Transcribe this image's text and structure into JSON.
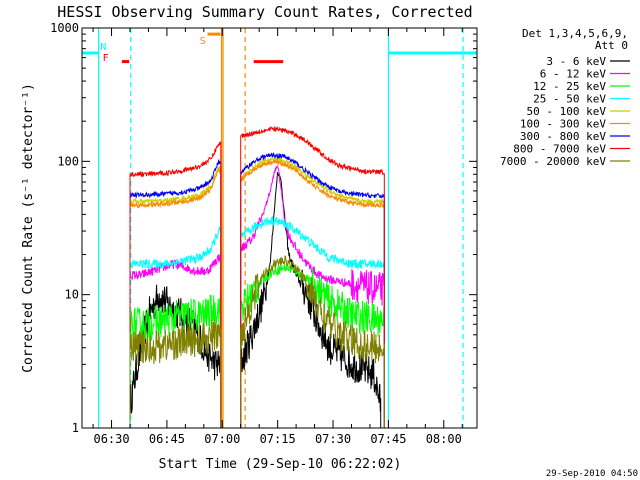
{
  "chart_data": {
    "type": "line",
    "title": "HESSI Observing Summary Count Rates, Corrected",
    "xlabel": "Start Time (29-Sep-10 06:22:02)",
    "ylabel": "Corrected Count Rate (s⁻¹ detector⁻¹)",
    "y_scale": "log",
    "ylim": [
      1,
      1000
    ],
    "xlim_minutes": [
      382,
      489
    ],
    "x_ticks": [
      {
        "label": "06:30",
        "minute": 390
      },
      {
        "label": "06:45",
        "minute": 405
      },
      {
        "label": "07:00",
        "minute": 420
      },
      {
        "label": "07:15",
        "minute": 435
      },
      {
        "label": "07:30",
        "minute": 450
      },
      {
        "label": "07:45",
        "minute": 465
      },
      {
        "label": "08:00",
        "minute": 480
      }
    ],
    "y_ticks": [
      {
        "label": "1",
        "value": 1
      },
      {
        "label": "10",
        "value": 10
      },
      {
        "label": "100",
        "value": 100
      },
      {
        "label": "1000",
        "value": 1000
      }
    ],
    "legend": {
      "header": [
        "Det 1,3,4,5,6,9,",
        "Att 0"
      ],
      "placement": "right"
    },
    "series": [
      {
        "name": "3 - 6 keV",
        "color": "#000000",
        "points": [
          [
            395,
            1.5
          ],
          [
            397,
            3
          ],
          [
            400,
            7
          ],
          [
            403,
            10
          ],
          [
            406,
            8
          ],
          [
            409,
            7
          ],
          [
            412,
            6
          ],
          [
            415,
            4
          ],
          [
            418,
            3
          ],
          [
            425,
            3
          ],
          [
            428,
            5
          ],
          [
            431,
            9
          ],
          [
            433,
            17
          ],
          [
            434,
            40
          ],
          [
            435,
            85
          ],
          [
            436,
            70
          ],
          [
            437,
            35
          ],
          [
            438,
            20
          ],
          [
            440,
            14
          ],
          [
            443,
            10
          ],
          [
            446,
            6
          ],
          [
            449,
            4
          ],
          [
            452,
            3.5
          ],
          [
            455,
            3
          ],
          [
            458,
            2.8
          ],
          [
            461,
            2.5
          ],
          [
            463,
            1.5
          ]
        ]
      },
      {
        "name": "6 - 12 keV",
        "color": "#ff00ff",
        "points": [
          [
            395,
            14
          ],
          [
            398,
            14
          ],
          [
            401,
            15
          ],
          [
            404,
            16
          ],
          [
            407,
            17
          ],
          [
            410,
            16
          ],
          [
            413,
            15
          ],
          [
            416,
            15
          ],
          [
            419,
            19
          ],
          [
            425,
            22
          ],
          [
            428,
            26
          ],
          [
            431,
            40
          ],
          [
            433,
            60
          ],
          [
            434,
            80
          ],
          [
            435,
            95
          ],
          [
            436,
            60
          ],
          [
            437,
            35
          ],
          [
            438,
            28
          ],
          [
            440,
            22
          ],
          [
            443,
            17
          ],
          [
            446,
            14
          ],
          [
            449,
            13
          ],
          [
            452,
            12.5
          ],
          [
            455,
            12
          ],
          [
            458,
            11.5
          ],
          [
            461,
            11
          ],
          [
            464,
            11
          ]
        ]
      },
      {
        "name": "12 - 25 keV",
        "color": "#00ff00",
        "points": [
          [
            395,
            6
          ],
          [
            400,
            6
          ],
          [
            405,
            6.5
          ],
          [
            410,
            7
          ],
          [
            415,
            7
          ],
          [
            419,
            8
          ],
          [
            425,
            8
          ],
          [
            428,
            10
          ],
          [
            431,
            13
          ],
          [
            434,
            15
          ],
          [
            437,
            16
          ],
          [
            440,
            15
          ],
          [
            443,
            13
          ],
          [
            446,
            11
          ],
          [
            449,
            9
          ],
          [
            452,
            8
          ],
          [
            455,
            7
          ],
          [
            458,
            6.8
          ],
          [
            461,
            6.5
          ],
          [
            464,
            6.5
          ]
        ]
      },
      {
        "name": "25 - 50 keV",
        "color": "#00ffff",
        "points": [
          [
            395,
            17
          ],
          [
            400,
            17
          ],
          [
            405,
            17
          ],
          [
            410,
            18
          ],
          [
            414,
            19
          ],
          [
            417,
            22
          ],
          [
            419,
            30
          ],
          [
            425,
            27
          ],
          [
            428,
            31
          ],
          [
            431,
            35
          ],
          [
            434,
            36
          ],
          [
            437,
            34
          ],
          [
            440,
            30
          ],
          [
            443,
            26
          ],
          [
            446,
            22
          ],
          [
            449,
            19
          ],
          [
            452,
            18
          ],
          [
            455,
            17
          ],
          [
            458,
            17
          ],
          [
            461,
            17
          ],
          [
            464,
            17
          ]
        ]
      },
      {
        "name": "50 - 100 keV",
        "color": "#cccc00",
        "points": [
          [
            395,
            50
          ],
          [
            400,
            50
          ],
          [
            405,
            51
          ],
          [
            410,
            53
          ],
          [
            414,
            56
          ],
          [
            417,
            65
          ],
          [
            419,
            90
          ],
          [
            425,
            75
          ],
          [
            428,
            88
          ],
          [
            431,
            100
          ],
          [
            434,
            105
          ],
          [
            437,
            100
          ],
          [
            440,
            90
          ],
          [
            443,
            78
          ],
          [
            446,
            68
          ],
          [
            449,
            60
          ],
          [
            452,
            55
          ],
          [
            455,
            52
          ],
          [
            458,
            50
          ],
          [
            461,
            50
          ],
          [
            464,
            50
          ]
        ]
      },
      {
        "name": "100 - 300 keV",
        "color": "#ff8800",
        "points": [
          [
            395,
            47
          ],
          [
            400,
            47
          ],
          [
            405,
            48
          ],
          [
            410,
            50
          ],
          [
            414,
            53
          ],
          [
            417,
            62
          ],
          [
            419,
            85
          ],
          [
            425,
            72
          ],
          [
            428,
            85
          ],
          [
            431,
            95
          ],
          [
            434,
            100
          ],
          [
            437,
            95
          ],
          [
            440,
            85
          ],
          [
            443,
            72
          ],
          [
            446,
            62
          ],
          [
            449,
            55
          ],
          [
            452,
            51
          ],
          [
            455,
            49
          ],
          [
            458,
            47
          ],
          [
            461,
            47
          ],
          [
            464,
            47
          ]
        ]
      },
      {
        "name": "300 - 800 keV",
        "color": "#0000ff",
        "points": [
          [
            395,
            56
          ],
          [
            400,
            56
          ],
          [
            405,
            57
          ],
          [
            410,
            59
          ],
          [
            414,
            63
          ],
          [
            417,
            72
          ],
          [
            419,
            100
          ],
          [
            425,
            82
          ],
          [
            428,
            97
          ],
          [
            431,
            108
          ],
          [
            434,
            112
          ],
          [
            437,
            108
          ],
          [
            440,
            97
          ],
          [
            443,
            83
          ],
          [
            446,
            72
          ],
          [
            449,
            64
          ],
          [
            452,
            59
          ],
          [
            455,
            57
          ],
          [
            458,
            56
          ],
          [
            461,
            55
          ],
          [
            464,
            55
          ]
        ]
      },
      {
        "name": "800 - 7000 keV",
        "color": "#ff0000",
        "points": [
          [
            395,
            80
          ],
          [
            400,
            80
          ],
          [
            405,
            82
          ],
          [
            410,
            86
          ],
          [
            414,
            92
          ],
          [
            417,
            105
          ],
          [
            419,
            135
          ],
          [
            425,
            155
          ],
          [
            428,
            162
          ],
          [
            431,
            170
          ],
          [
            434,
            175
          ],
          [
            437,
            170
          ],
          [
            440,
            158
          ],
          [
            443,
            140
          ],
          [
            446,
            120
          ],
          [
            449,
            102
          ],
          [
            452,
            92
          ],
          [
            455,
            88
          ],
          [
            458,
            85
          ],
          [
            461,
            83
          ],
          [
            464,
            83
          ]
        ]
      },
      {
        "name": "7000 - 20000 keV",
        "color": "#808000",
        "points": [
          [
            395,
            4
          ],
          [
            400,
            4
          ],
          [
            405,
            4.2
          ],
          [
            410,
            4.5
          ],
          [
            415,
            4.6
          ],
          [
            419,
            5
          ],
          [
            425,
            5
          ],
          [
            428,
            9
          ],
          [
            431,
            14
          ],
          [
            434,
            17
          ],
          [
            437,
            18
          ],
          [
            440,
            16
          ],
          [
            443,
            12
          ],
          [
            446,
            8
          ],
          [
            449,
            6
          ],
          [
            452,
            5
          ],
          [
            455,
            4.5
          ],
          [
            458,
            4.2
          ],
          [
            461,
            4
          ],
          [
            464,
            4
          ]
        ]
      }
    ],
    "annotations": [
      {
        "text": "N",
        "color": "#00ffff",
        "minute": 387.8
      },
      {
        "text": "F",
        "color": "#ff0000",
        "minute": 388.4
      },
      {
        "text": "S",
        "color": "#ff8800",
        "minute": 414.7
      }
    ],
    "overlays": {
      "night_bars": [
        {
          "x_from": 382,
          "x_to": 386.5,
          "value": 650,
          "color": "#00ffff"
        },
        {
          "x_from": 465,
          "x_to": 489,
          "value": 650,
          "color": "#00ffff"
        }
      ],
      "saa_bar": {
        "x_from": 416,
        "x_to": 419.5,
        "value": 900,
        "color": "#ff8800"
      },
      "flare_bars": [
        {
          "x_from": 392.8,
          "x_to": 394.8,
          "value": 560,
          "color": "#ff0000"
        },
        {
          "x_from": 428.5,
          "x_to": 436.5,
          "value": 560,
          "color": "#ff0000"
        }
      ],
      "vlines": [
        {
          "minute": 386.5,
          "color": "#00ffff",
          "style": "solid"
        },
        {
          "minute": 395.2,
          "color": "#00ffff",
          "style": "dashed"
        },
        {
          "minute": 419.8,
          "color": "#ff8800",
          "style": "solid"
        },
        {
          "minute": 420.2,
          "color": "#ff8800",
          "style": "solid"
        },
        {
          "minute": 426.2,
          "color": "#ff8800",
          "style": "dashed"
        },
        {
          "minute": 465.0,
          "color": "#00ffff",
          "style": "solid"
        },
        {
          "minute": 489.0,
          "color": "#00ffff",
          "style": "dashed"
        }
      ]
    }
  },
  "footer": {
    "timestamp": "29-Sep-2010 04:50"
  }
}
